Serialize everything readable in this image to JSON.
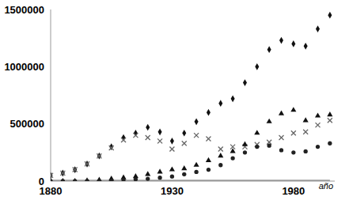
{
  "chart_data": {
    "type": "scatter",
    "x_label": "año",
    "x": [
      1880,
      1885,
      1890,
      1895,
      1900,
      1905,
      1910,
      1915,
      1920,
      1925,
      1930,
      1935,
      1940,
      1945,
      1950,
      1955,
      1960,
      1965,
      1970,
      1975,
      1980,
      1985,
      1990,
      1995
    ],
    "xlim": [
      1880,
      1997
    ],
    "xticks": [
      1880,
      1930,
      1980
    ],
    "ylim": [
      0,
      1500000
    ],
    "yticks": [
      0,
      500000,
      1000000,
      1500000
    ],
    "grid": false,
    "series": [
      {
        "color": "#111111",
        "marker": "diamond",
        "values": [
          50000,
          70000,
          100000,
          150000,
          220000,
          300000,
          380000,
          420000,
          470000,
          430000,
          350000,
          420000,
          520000,
          600000,
          680000,
          720000,
          860000,
          1000000,
          1150000,
          1230000,
          1200000,
          1180000,
          1330000,
          1450000
        ]
      },
      {
        "color": "#666666",
        "marker": "x",
        "values": [
          50000,
          70000,
          100000,
          150000,
          220000,
          290000,
          360000,
          400000,
          380000,
          350000,
          280000,
          330000,
          400000,
          370000,
          280000,
          300000,
          300000,
          320000,
          340000,
          380000,
          420000,
          430000,
          490000,
          530000
        ]
      },
      {
        "color": "#111111",
        "marker": "triangle",
        "values": [
          0,
          0,
          0,
          5000,
          10000,
          20000,
          30000,
          40000,
          60000,
          80000,
          100000,
          110000,
          140000,
          180000,
          220000,
          260000,
          320000,
          420000,
          520000,
          590000,
          620000,
          530000,
          570000,
          580000
        ]
      },
      {
        "color": "#222222",
        "marker": "circle",
        "values": [
          0,
          0,
          0,
          0,
          0,
          5000,
          10000,
          15000,
          20000,
          30000,
          40000,
          60000,
          80000,
          100000,
          140000,
          200000,
          250000,
          300000,
          310000,
          270000,
          250000,
          260000,
          300000,
          330000
        ]
      },
      {
        "color": "#9a9a9a",
        "type": "line",
        "line_style": "solid",
        "values": [
          5000,
          5000,
          5000,
          5000,
          5000,
          5000,
          5000,
          5000,
          5000,
          5000,
          5000,
          5000,
          5000,
          5000,
          5000,
          5000,
          5000,
          5000,
          5000,
          5000,
          5000,
          5000,
          5000,
          5000
        ]
      }
    ]
  }
}
